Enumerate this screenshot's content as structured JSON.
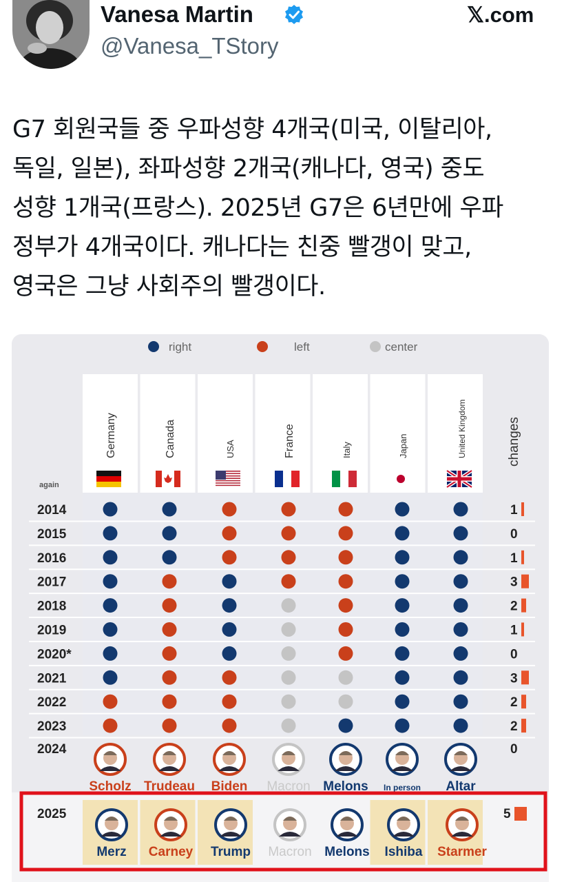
{
  "tweet": {
    "author_name": "Vanesa Martin",
    "handle": "@Vanesa_TStory",
    "site": "𝕏.com",
    "text_lines": [
      "G7 회원국들 중 우파성향 4개국(미국, 이탈리아,",
      "독일, 일본), 좌파성향 2개국(캐나다, 영국) 중도",
      "성향 1개국(프랑스). 2025년 G7은 6년만에 우파",
      "정부가 4개국이다. 캐나다는 친중 빨갱이 맞고,",
      "영국은 그냥 사회주의 빨갱이다."
    ]
  },
  "colors": {
    "right": "#13396f",
    "left": "#c9401b",
    "center": "#c4c4c4",
    "highlight": "#e0121b",
    "name_bg": "#f3e3b6"
  },
  "chart_data": {
    "type": "table",
    "legend": [
      {
        "key": "right",
        "label": "right"
      },
      {
        "key": "left",
        "label": "left"
      },
      {
        "key": "center",
        "label": "center"
      }
    ],
    "corner_label": "again",
    "countries": [
      {
        "name": "Germany",
        "flag": "de"
      },
      {
        "name": "Canada",
        "flag": "ca"
      },
      {
        "name": "USA",
        "flag": "us"
      },
      {
        "name": "France",
        "flag": "fr"
      },
      {
        "name": "Italy",
        "flag": "it"
      },
      {
        "name": "Japan",
        "flag": "jp"
      },
      {
        "name": "United Kingdom",
        "flag": "uk"
      }
    ],
    "changes_label": "changes",
    "rows": [
      {
        "year": "2014",
        "values": [
          "right",
          "right",
          "left",
          "left",
          "left",
          "right",
          "right"
        ],
        "changes": 1
      },
      {
        "year": "2015",
        "values": [
          "right",
          "right",
          "left",
          "left",
          "left",
          "right",
          "right"
        ],
        "changes": 0
      },
      {
        "year": "2016",
        "values": [
          "right",
          "right",
          "left",
          "left",
          "left",
          "right",
          "right"
        ],
        "changes": 1
      },
      {
        "year": "2017",
        "values": [
          "right",
          "left",
          "right",
          "left",
          "left",
          "right",
          "right"
        ],
        "changes": 3
      },
      {
        "year": "2018",
        "values": [
          "right",
          "left",
          "right",
          "center",
          "left",
          "right",
          "right"
        ],
        "changes": 2
      },
      {
        "year": "2019",
        "values": [
          "right",
          "left",
          "right",
          "center",
          "left",
          "right",
          "right"
        ],
        "changes": 1
      },
      {
        "year": "2020*",
        "values": [
          "right",
          "left",
          "right",
          "center",
          "left",
          "right",
          "right"
        ],
        "changes": 0
      },
      {
        "year": "2021",
        "values": [
          "right",
          "left",
          "left",
          "center",
          "center",
          "right",
          "right"
        ],
        "changes": 3
      },
      {
        "year": "2022",
        "values": [
          "left",
          "left",
          "left",
          "center",
          "center",
          "right",
          "right"
        ],
        "changes": 2
      },
      {
        "year": "2023",
        "values": [
          "left",
          "left",
          "left",
          "center",
          "right",
          "right",
          "right"
        ],
        "changes": 2
      }
    ],
    "leader_rows": [
      {
        "year": "2024",
        "changes": 0,
        "highlighted": false,
        "leaders": [
          {
            "name": "Scholz",
            "lean": "left"
          },
          {
            "name": "Trudeau",
            "lean": "left"
          },
          {
            "name": "Biden",
            "lean": "left"
          },
          {
            "name": "Macron",
            "lean": "center"
          },
          {
            "name": "Melons",
            "lean": "right"
          },
          {
            "name": "In person",
            "lean": "right"
          },
          {
            "name": "Altar",
            "lean": "right"
          }
        ]
      },
      {
        "year": "2025",
        "changes": 5,
        "highlighted": true,
        "leaders": [
          {
            "name": "Merz",
            "lean": "right"
          },
          {
            "name": "Carney",
            "lean": "left"
          },
          {
            "name": "Trump",
            "lean": "right"
          },
          {
            "name": "Macron",
            "lean": "center"
          },
          {
            "name": "Melons",
            "lean": "right"
          },
          {
            "name": "Ishiba",
            "lean": "right"
          },
          {
            "name": "Starmer",
            "lean": "left"
          }
        ]
      }
    ]
  }
}
